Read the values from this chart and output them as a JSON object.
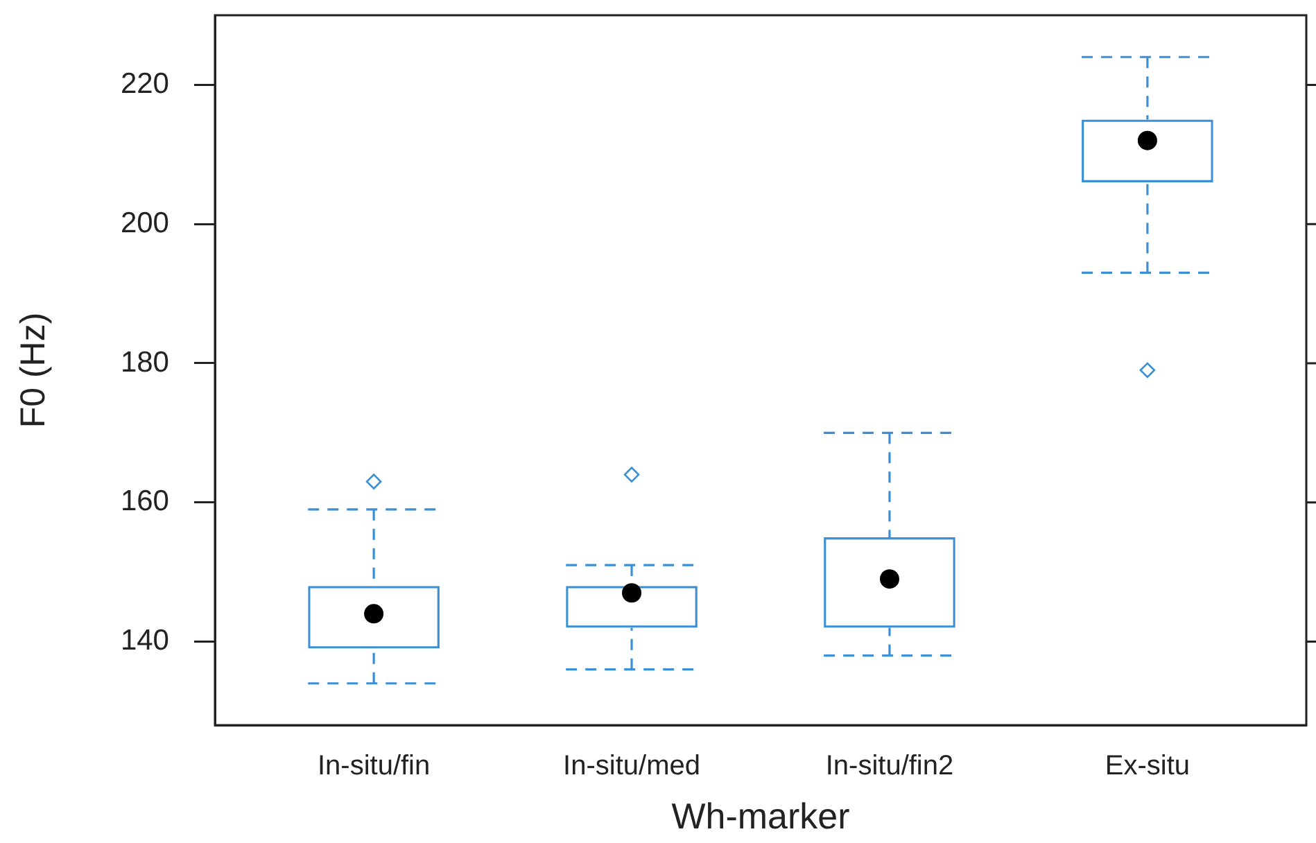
{
  "chart_data": {
    "type": "box",
    "xlabel": "Wh-marker",
    "ylabel": "F0 (Hz)",
    "categories": [
      "In-situ/fin",
      "In-situ/med",
      "In-situ/fin2",
      "Ex-situ"
    ],
    "boxes": [
      {
        "low": 134,
        "q1": 139,
        "median": 144,
        "q3": 148,
        "high": 159,
        "outliers": [
          163
        ]
      },
      {
        "low": 136,
        "q1": 142,
        "median": 147,
        "q3": 148,
        "high": 151,
        "outliers": [
          164
        ]
      },
      {
        "low": 138,
        "q1": 142,
        "median": 149,
        "q3": 155,
        "high": 170
      },
      {
        "low": 193,
        "q1": 206,
        "median": 212,
        "q3": 215,
        "high": 224,
        "outliers": [
          179
        ]
      }
    ],
    "color": "#3a8fd6",
    "ylim": [
      128,
      230
    ],
    "yticks": [
      140,
      160,
      180,
      200,
      220
    ],
    "line_style": "dashed"
  }
}
